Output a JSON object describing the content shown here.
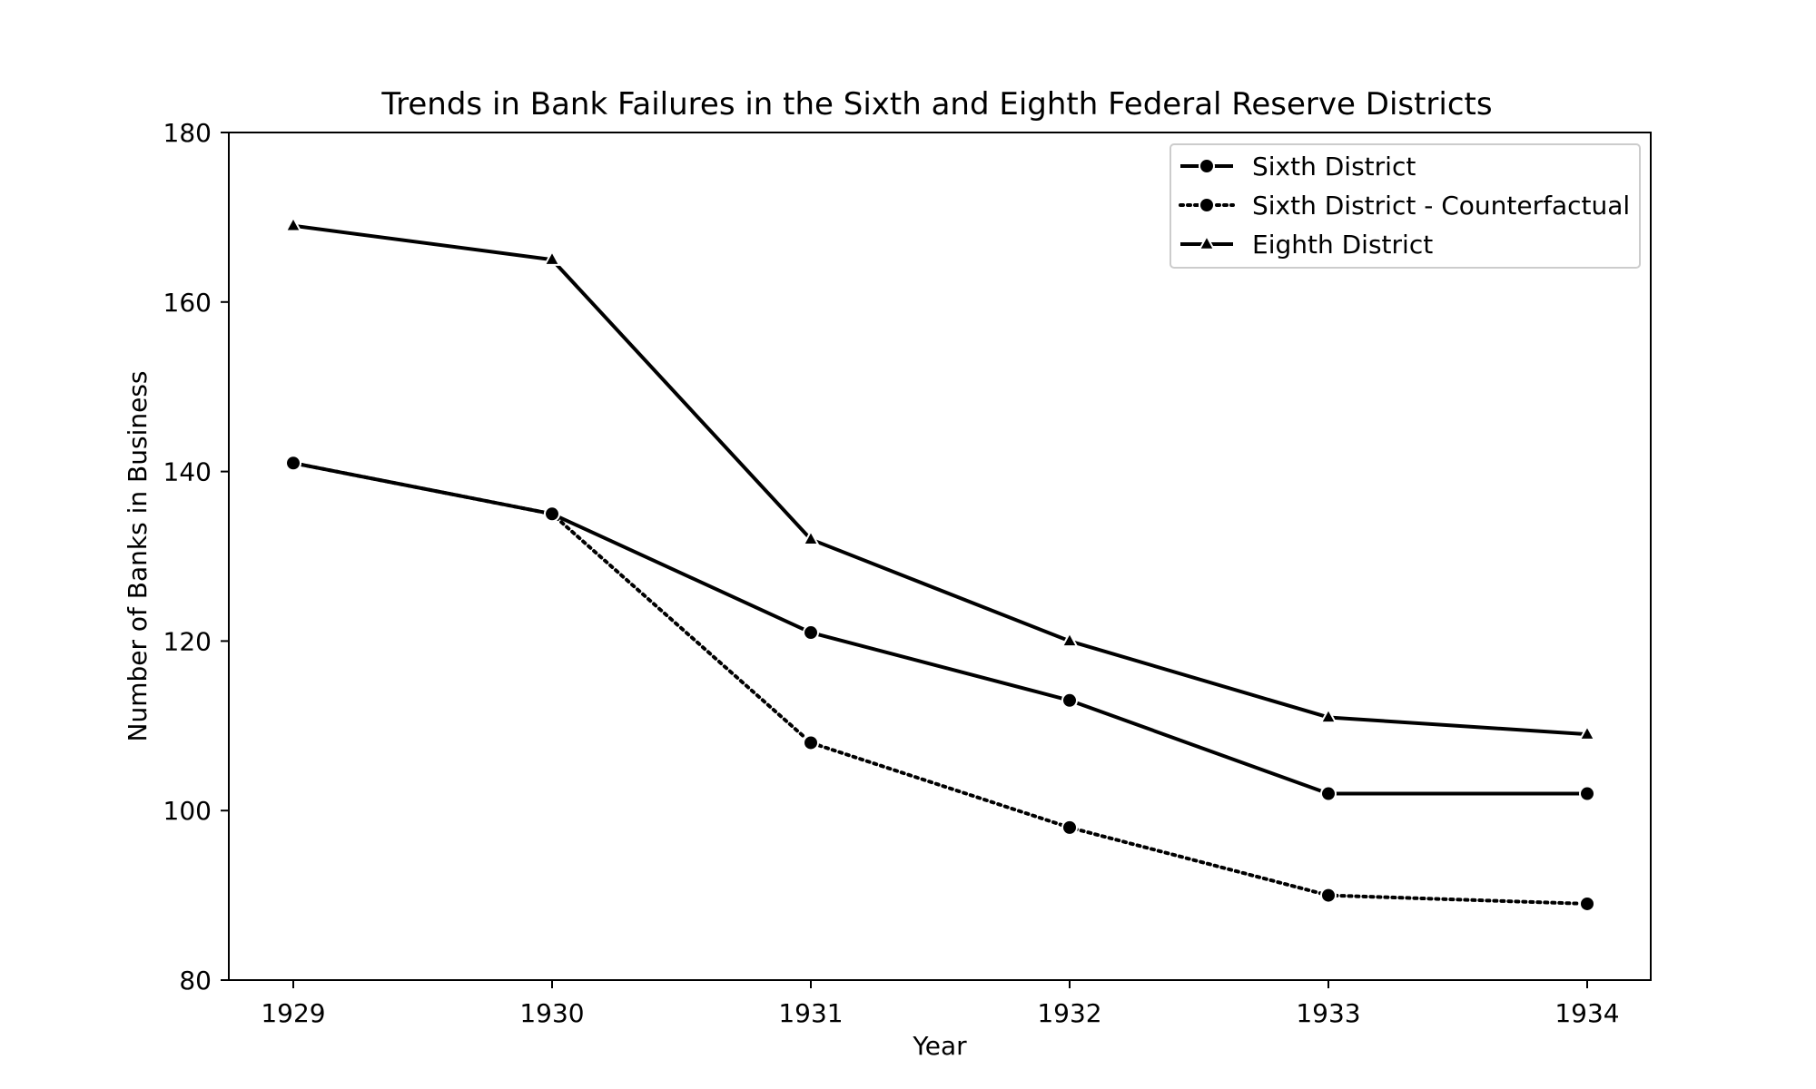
{
  "chart_data": {
    "type": "line",
    "title": "Trends in Bank Failures in the Sixth and Eighth Federal Reserve Districts",
    "xlabel": "Year",
    "ylabel": "Number of Banks in Business",
    "x": [
      "1929",
      "1930",
      "1931",
      "1932",
      "1933",
      "1934"
    ],
    "ylim": [
      80,
      180
    ],
    "yticks": [
      80,
      100,
      120,
      140,
      160,
      180
    ],
    "grid": false,
    "legend_position": "top-right",
    "series": [
      {
        "name": "Sixth District",
        "values": [
          141,
          135,
          121,
          113,
          102,
          102
        ],
        "line_style": "solid",
        "marker": "circle",
        "color": "#000000"
      },
      {
        "name": "Sixth District - Counterfactual",
        "values": [
          141,
          135,
          108,
          98,
          90,
          89
        ],
        "line_style": "dotted",
        "marker": "circle",
        "color": "#000000"
      },
      {
        "name": "Eighth District",
        "values": [
          169,
          165,
          132,
          120,
          111,
          109
        ],
        "line_style": "solid",
        "marker": "triangle",
        "color": "#000000"
      }
    ]
  }
}
